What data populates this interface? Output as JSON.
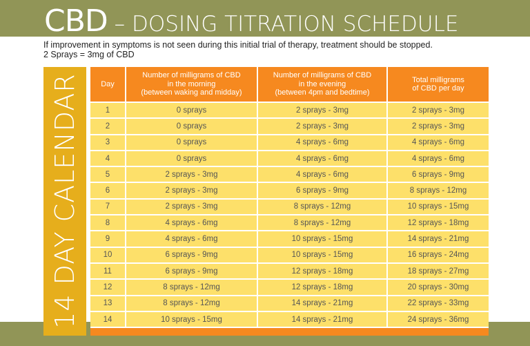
{
  "header": {
    "title_big": "CBD",
    "title_rest": " – DOSING TITRATION SCHEDULE",
    "subtitle_line1": "If improvement in symptoms is not seen during this initial trial of therapy, treatment should be stopped.",
    "subtitle_line2": "2 Sprays = 3mg of CBD"
  },
  "side_label": "14 DAY CALENDAR",
  "colors": {
    "band_green": "#919557",
    "side_gold": "#e6ae1c",
    "header_orange": "#f6891f",
    "cell_yellow": "#fde06a"
  },
  "table": {
    "columns": [
      "Day",
      "Number of milligrams of CBD in the morning (between waking and midday)",
      "Number of milligrams of CBD in the evening (between 4pm and bedtime)",
      "Total milligrams of CBD per day"
    ],
    "column_lines": [
      [
        "Day"
      ],
      [
        "Number of milligrams of CBD",
        "in the morning",
        "(between waking and midday)"
      ],
      [
        "Number of milligrams of CBD",
        "in the evening",
        "(between 4pm and bedtime)"
      ],
      [
        "Total milligrams",
        "of CBD per day"
      ]
    ],
    "rows": [
      [
        "1",
        "0 sprays",
        "2 sprays - 3mg",
        "2 sprays - 3mg"
      ],
      [
        "2",
        "0 sprays",
        "2 sprays - 3mg",
        "2 sprays - 3mg"
      ],
      [
        "3",
        "0 sprays",
        "4 sprays - 6mg",
        "4 sprays - 6mg"
      ],
      [
        "4",
        "0 sprays",
        "4 sprays - 6mg",
        "4 sprays - 6mg"
      ],
      [
        "5",
        "2 sprays - 3mg",
        "4 sprays - 6mg",
        "6 sprays - 9mg"
      ],
      [
        "6",
        "2 sprays - 3mg",
        "6 sprays - 9mg",
        "8 sprays - 12mg"
      ],
      [
        "7",
        "2 sprays - 3mg",
        "8 sprays - 12mg",
        "10 sprays - 15mg"
      ],
      [
        "8",
        "4 sprays - 6mg",
        "8 sprays - 12mg",
        "12 sprays - 18mg"
      ],
      [
        "9",
        "4 sprays - 6mg",
        "10 sprays - 15mg",
        "14 sprays - 21mg"
      ],
      [
        "10",
        "6 sprays - 9mg",
        "10 sprays - 15mg",
        "16 sprays - 24mg"
      ],
      [
        "11",
        "6 sprays - 9mg",
        "12 sprays - 18mg",
        "18 sprays - 27mg"
      ],
      [
        "12",
        "8 sprays - 12mg",
        "12 sprays - 18mg",
        "20 sprays - 30mg"
      ],
      [
        "13",
        "8 sprays - 12mg",
        "14 sprays - 21mg",
        "22 sprays - 33mg"
      ],
      [
        "14",
        "10 sprays - 15mg",
        "14 sprays - 21mg",
        "24 sprays - 36mg"
      ]
    ]
  }
}
